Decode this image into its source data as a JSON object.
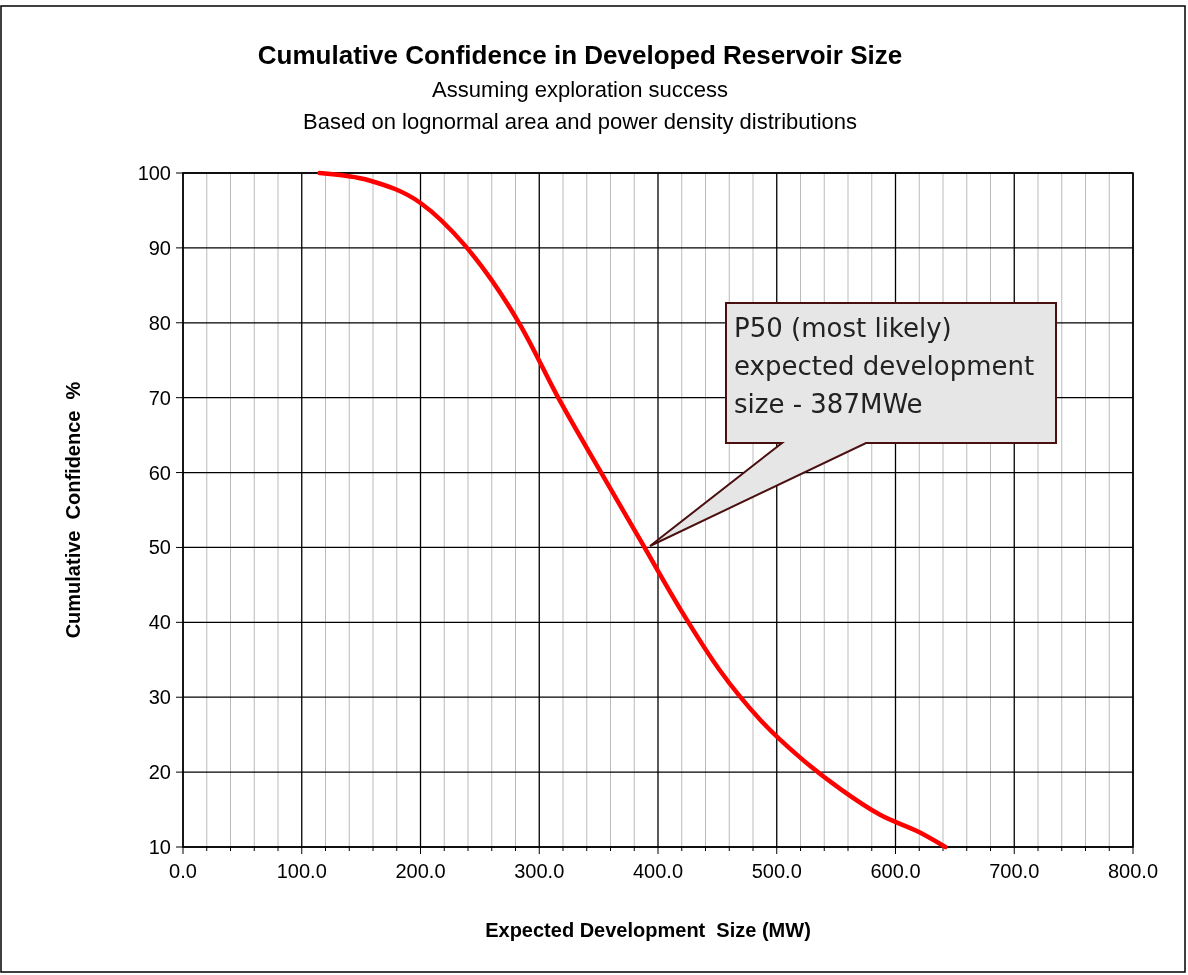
{
  "chart_data": {
    "type": "line",
    "title": "Cumulative Confidence in Developed Reservoir Size",
    "subtitle": "Assuming exploration success\nBased on lognormal area and power density distributions",
    "xlabel": "Expected Development  Size (MW)",
    "ylabel": "Cumulative  Confidence  %",
    "x": [
      115,
      157,
      200,
      237,
      284,
      317,
      351,
      385,
      419,
      452,
      486,
      520,
      554,
      587,
      621,
      642
    ],
    "series": [
      {
        "color": "#ff0000",
        "values": [
          100,
          99,
          96,
          90.4,
          79.7,
          69.7,
          60.3,
          51,
          41.7,
          33.6,
          27,
          21.9,
          17.7,
          14.3,
          11.9,
          10
        ]
      }
    ],
    "xlim": [
      0,
      800
    ],
    "ylim": [
      10,
      100
    ],
    "xticks": [
      {
        "value": 0,
        "label": "0.0"
      },
      {
        "value": 20,
        "label": null
      },
      {
        "value": 40,
        "label": null
      },
      {
        "value": 60,
        "label": null
      },
      {
        "value": 80,
        "label": null
      },
      {
        "value": 100,
        "label": "100.0"
      },
      {
        "value": 120,
        "label": null
      },
      {
        "value": 140,
        "label": null
      },
      {
        "value": 160,
        "label": null
      },
      {
        "value": 180,
        "label": null
      },
      {
        "value": 200,
        "label": "200.0"
      },
      {
        "value": 220,
        "label": null
      },
      {
        "value": 240,
        "label": null
      },
      {
        "value": 260,
        "label": null
      },
      {
        "value": 280,
        "label": null
      },
      {
        "value": 300,
        "label": "300.0"
      },
      {
        "value": 320,
        "label": null
      },
      {
        "value": 340,
        "label": null
      },
      {
        "value": 360,
        "label": null
      },
      {
        "value": 380,
        "label": null
      },
      {
        "value": 400,
        "label": "400.0"
      },
      {
        "value": 420,
        "label": null
      },
      {
        "value": 440,
        "label": null
      },
      {
        "value": 460,
        "label": null
      },
      {
        "value": 480,
        "label": null
      },
      {
        "value": 500,
        "label": "500.0"
      },
      {
        "value": 520,
        "label": null
      },
      {
        "value": 540,
        "label": null
      },
      {
        "value": 560,
        "label": null
      },
      {
        "value": 580,
        "label": null
      },
      {
        "value": 600,
        "label": "600.0"
      },
      {
        "value": 620,
        "label": null
      },
      {
        "value": 640,
        "label": null
      },
      {
        "value": 660,
        "label": null
      },
      {
        "value": 680,
        "label": null
      },
      {
        "value": 700,
        "label": "700.0"
      },
      {
        "value": 720,
        "label": null
      },
      {
        "value": 740,
        "label": null
      },
      {
        "value": 760,
        "label": null
      },
      {
        "value": 780,
        "label": null
      },
      {
        "value": 800,
        "label": "800.0"
      }
    ],
    "yticks": [
      10,
      20,
      30,
      40,
      50,
      60,
      70,
      80,
      90,
      100
    ],
    "grid": true,
    "marker": "none",
    "line_style": "solid",
    "annotations": [
      "P50 (most likely)\nexpected development\nsize - 387MWe"
    ]
  }
}
